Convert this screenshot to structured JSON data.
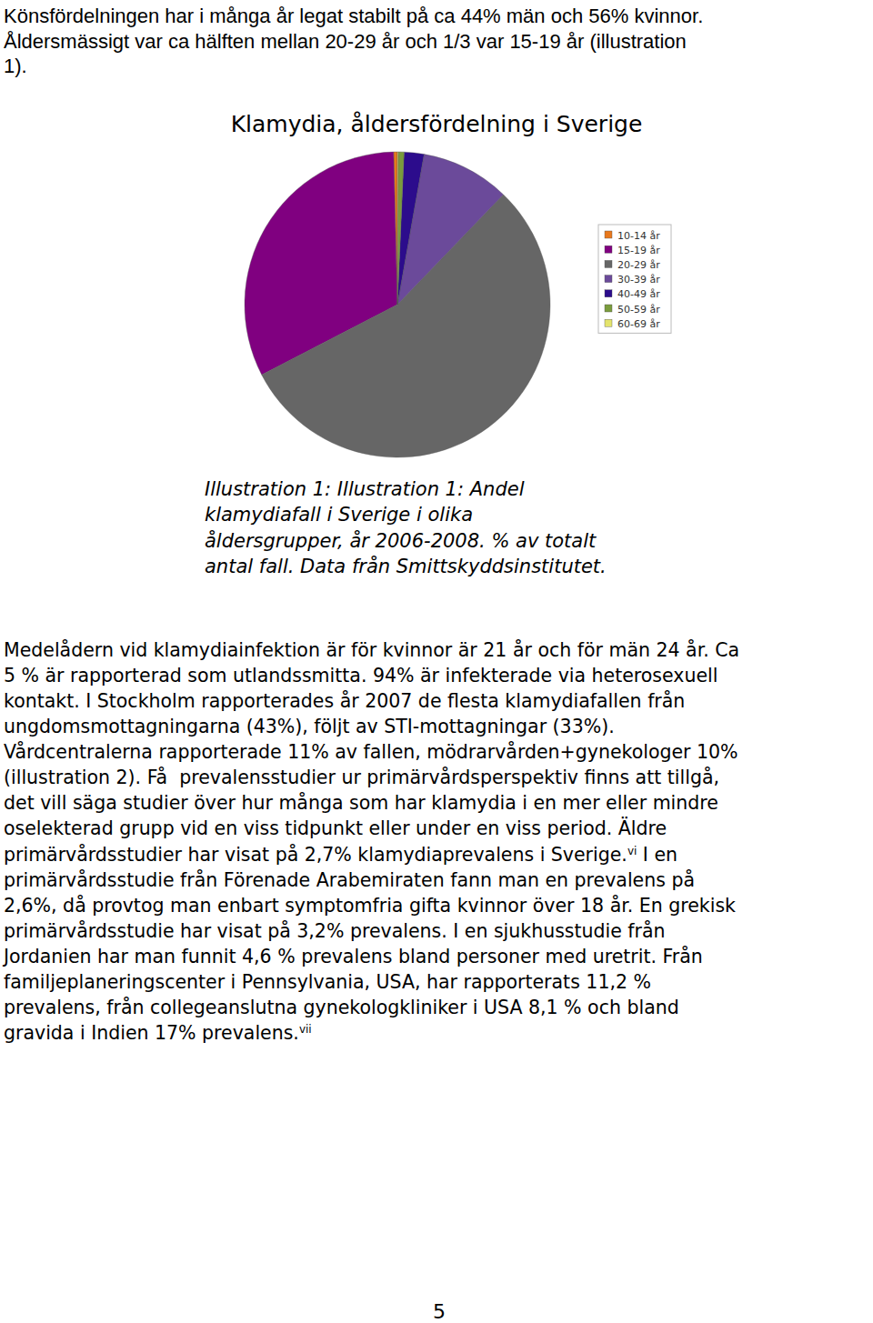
{
  "intro": {
    "lines": [
      "Könsfördelningen har i många år legat stabilt på ca 44% män och 56% kvinnor.",
      "Åldersmässigt var ca hälften mellan 20-29 år och 1/3 var 15-19 år (illustration",
      "1)."
    ]
  },
  "chart_data": {
    "type": "pie",
    "title": "Klamydia, åldersfördelning i Sverige",
    "categories": [
      "10-14 år",
      "15-19 år",
      "20-29 år",
      "30-39 år",
      "40-49 år",
      "50-59 år",
      "60-69 år"
    ],
    "values": [
      0.4,
      32.2,
      55.2,
      9.4,
      2.1,
      0.6,
      0.1
    ],
    "colors": [
      "#e8781c",
      "#800080",
      "#666666",
      "#6b4a9a",
      "#2c0c8c",
      "#7a9c3c",
      "#e4e46c"
    ],
    "legend": "right"
  },
  "caption": {
    "lines": [
      "Illustration 1: Illustration 1: Andel",
      "klamydiafall i Sverige i olika",
      "åldersgrupper, år 2006-2008. % av totalt",
      "antal fall. Data från Smittskyddsinstitutet."
    ]
  },
  "body": {
    "lines": [
      [
        "Medelådern vid klamydiainfektion är för kvinnor är 21 år och för män 24 år. Ca"
      ],
      [
        "5 % är rapporterad som utlandssmitta. 94% är infekterade via heterosexuell"
      ],
      [
        "kontakt. I Stockholm rapporterades år 2007 de flesta klamydiafallen från"
      ],
      [
        "ungdomsmottagningarna (43%), följt av STI-mottagningar (33%)."
      ],
      [
        "Vårdcentralerna rapporterade 11% av fallen, mödrarvården+gynekologer 10%"
      ],
      [
        "(illustration 2). Få  prevalensstudier ur primärvårdsperspektiv finns att tillgå,"
      ],
      [
        "det vill säga studier över hur många som har klamydia i en mer eller mindre"
      ],
      [
        "oselekterad grupp vid en viss tidpunkt eller under en viss period. Äldre"
      ],
      [
        "primärvårdsstudier har visat på 2,7% klamydiaprevalens i Sverige.",
        {
          "sup": "vi"
        },
        " I en"
      ],
      [
        "primärvårdsstudie från Förenade Arabemiraten fann man en prevalens på"
      ],
      [
        "2,6%, då provtog man enbart symptomfria gifta kvinnor över 18 år. En grekisk"
      ],
      [
        "primärvårdsstudie har visat på 3,2% prevalens. I en sjukhusstudie från"
      ],
      [
        "Jordanien har man funnit 4,6 % prevalens bland personer med uretrit. Från"
      ],
      [
        "familjeplaneringscenter i Pennsylvania, USA, har rapporterats 11,2 %"
      ],
      [
        "prevalens, från collegeanslutna gynekologkliniker i USA 8,1 % och bland"
      ],
      [
        "gravida i Indien 17% prevalens.",
        {
          "sup": "vii"
        }
      ]
    ]
  },
  "page_number": "5"
}
